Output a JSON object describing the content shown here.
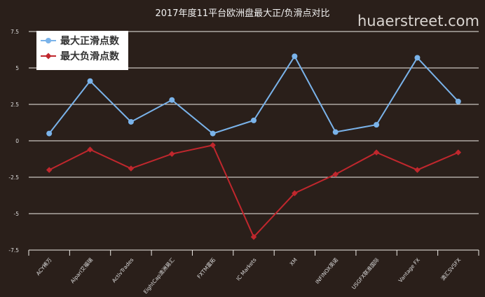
{
  "chart_data": {
    "type": "line",
    "title": "2017年度11平台欧洲盘最大正/负滑点对比",
    "categories": [
      "ACY稀万",
      "Alpari艾福瑞",
      "ActivTrades",
      "EightCap澳洲易汇",
      "FXTM富拓",
      "IC Markets",
      "XM",
      "INFINOX英诺",
      "USGFX联准国际",
      "Vantage FX",
      "澳汇SVSFX"
    ],
    "series": [
      {
        "name": "最大正滑点数",
        "color": "#7ab3ea",
        "marker": "circle",
        "values": [
          0.5,
          4.1,
          1.3,
          2.8,
          0.5,
          1.4,
          5.8,
          0.6,
          1.1,
          5.7,
          2.7
        ]
      },
      {
        "name": "最大负滑点数",
        "color": "#c0272d",
        "marker": "diamond",
        "values": [
          -2.0,
          -0.6,
          -1.9,
          -0.9,
          -0.3,
          -6.6,
          -3.6,
          -2.3,
          -0.8,
          -2.0,
          -0.8
        ]
      }
    ],
    "ylim": [
      -7.5,
      7.5
    ],
    "yticks": [
      "7.5",
      "5",
      "2.5",
      "0",
      "-2.5",
      "-5",
      "-7.5"
    ],
    "grid": true,
    "legend_position": "top-left"
  },
  "watermark": "huaerstreet.com"
}
